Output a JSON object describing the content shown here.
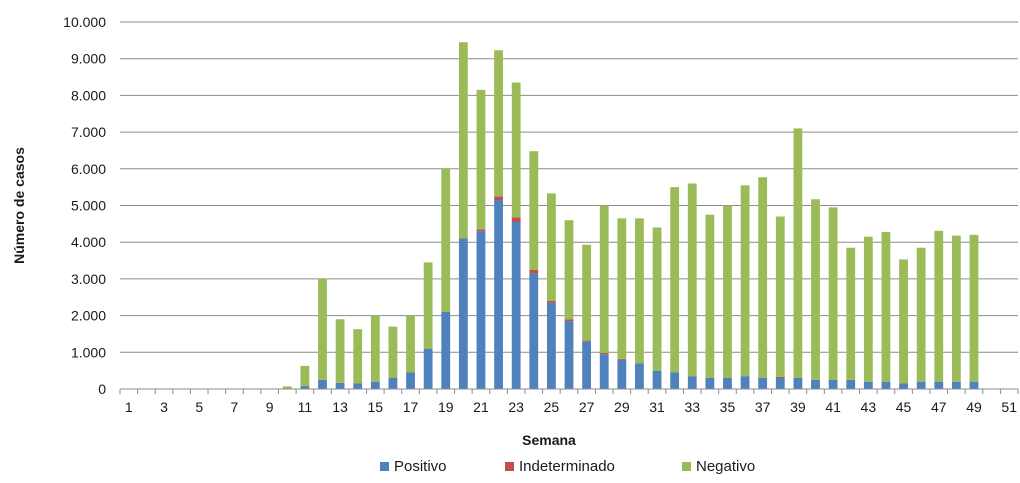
{
  "chart_data": {
    "type": "bar",
    "stacked": true,
    "title": "",
    "xlabel": "Semana",
    "ylabel": "Número de casos",
    "ylim": [
      0,
      10000
    ],
    "yticks": [
      "0",
      "1.000",
      "2.000",
      "3.000",
      "4.000",
      "5.000",
      "6.000",
      "7.000",
      "8.000",
      "9.000",
      "10.000"
    ],
    "categories": [
      1,
      2,
      3,
      4,
      5,
      6,
      7,
      8,
      9,
      10,
      11,
      12,
      13,
      14,
      15,
      16,
      17,
      18,
      19,
      20,
      21,
      22,
      23,
      24,
      25,
      26,
      27,
      28,
      29,
      30,
      31,
      32,
      33,
      34,
      35,
      36,
      37,
      38,
      39,
      40,
      41,
      42,
      43,
      44,
      45,
      46,
      47,
      48,
      49,
      50,
      51
    ],
    "xtick_labels": [
      "1",
      "",
      "3",
      "",
      "5",
      "",
      "7",
      "",
      "9",
      "",
      "11",
      "",
      "13",
      "",
      "15",
      "",
      "17",
      "",
      "19",
      "",
      "21",
      "",
      "23",
      "",
      "25",
      "",
      "27",
      "",
      "29",
      "",
      "31",
      "",
      "33",
      "",
      "35",
      "",
      "37",
      "",
      "39",
      "",
      "41",
      "",
      "43",
      "",
      "45",
      "",
      "47",
      "",
      "49",
      "",
      "51"
    ],
    "grid": "horizontal",
    "legend_position": "bottom",
    "series": [
      {
        "name": "Positivo",
        "color": "#4f81bd",
        "values": [
          0,
          0,
          0,
          0,
          0,
          0,
          0,
          0,
          0,
          10,
          80,
          250,
          170,
          150,
          200,
          300,
          450,
          1100,
          2100,
          4100,
          4300,
          5150,
          4550,
          3150,
          2350,
          1850,
          1300,
          950,
          800,
          700,
          500,
          450,
          350,
          300,
          300,
          350,
          300,
          300,
          300,
          250,
          250,
          250,
          200,
          200,
          150,
          200,
          200,
          200,
          200,
          0,
          0
        ]
      },
      {
        "name": "Indeterminado",
        "color": "#c0504d",
        "values": [
          0,
          0,
          0,
          0,
          0,
          0,
          0,
          0,
          0,
          0,
          0,
          0,
          0,
          0,
          0,
          0,
          0,
          0,
          0,
          0,
          50,
          100,
          130,
          100,
          50,
          50,
          20,
          30,
          20,
          0,
          0,
          0,
          0,
          0,
          0,
          0,
          0,
          30,
          0,
          0,
          0,
          0,
          0,
          0,
          0,
          0,
          0,
          0,
          0,
          0,
          0
        ]
      },
      {
        "name": "Negativo",
        "color": "#9bbb59",
        "values": [
          0,
          0,
          0,
          0,
          0,
          0,
          0,
          0,
          0,
          60,
          550,
          2750,
          1730,
          1480,
          1800,
          1400,
          1550,
          2350,
          3900,
          5350,
          3800,
          3980,
          3670,
          3230,
          2930,
          2700,
          2610,
          4020,
          3830,
          3950,
          3900,
          5050,
          5250,
          4450,
          4700,
          5200,
          5470,
          4370,
          6800,
          4920,
          4700,
          3600,
          3950,
          4080,
          3380,
          3650,
          4110,
          3980,
          4000,
          0,
          0
        ]
      }
    ]
  }
}
